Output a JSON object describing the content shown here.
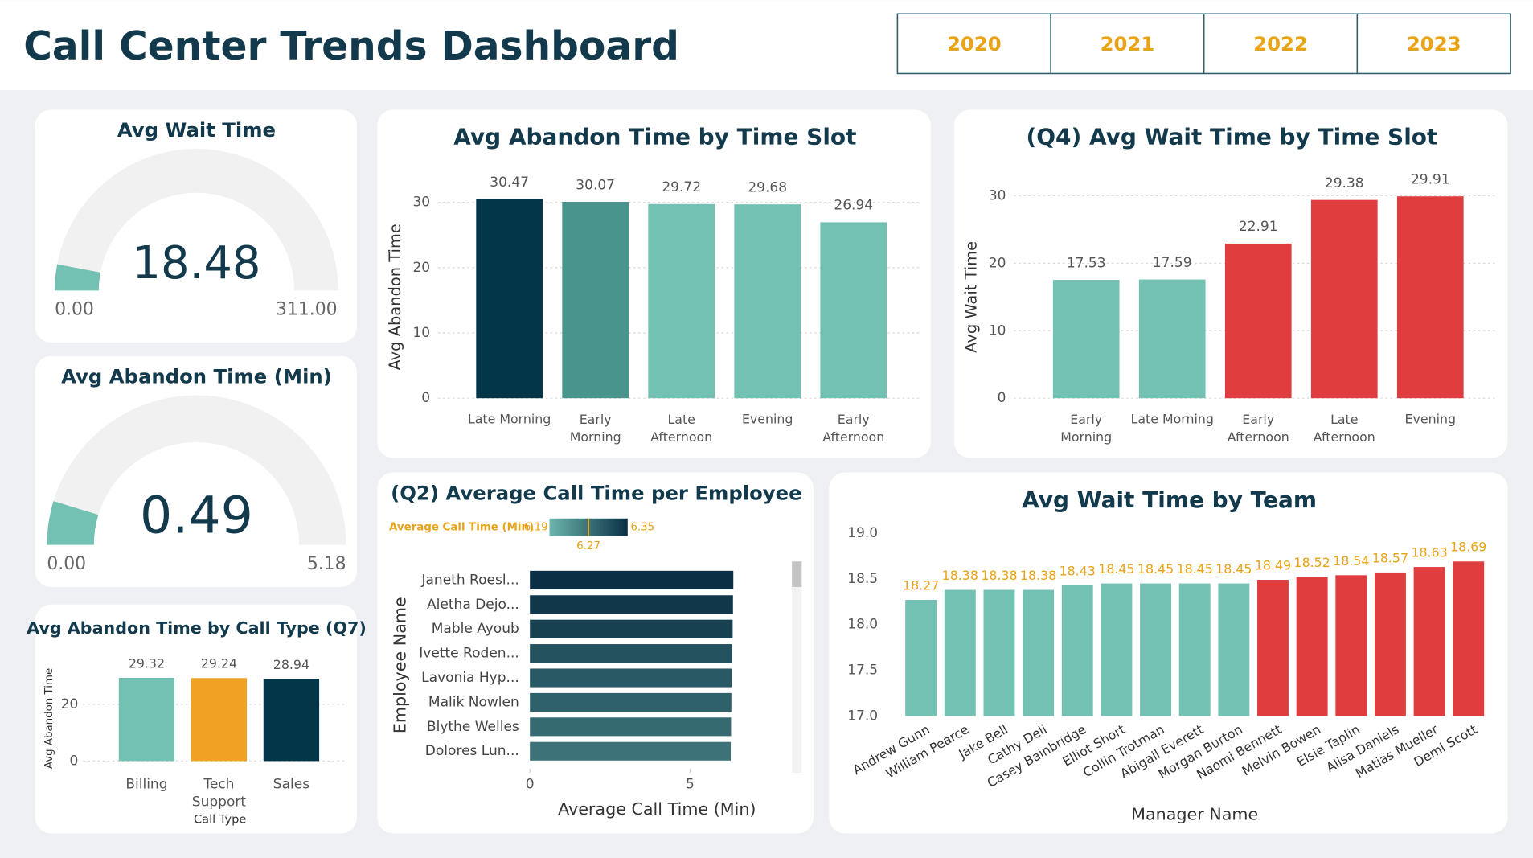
{
  "title": "Call Center Trends Dashboard",
  "filters": [
    "2020",
    "2021",
    "2022",
    "2023"
  ],
  "chart_data": [
    {
      "type": "gauge",
      "title": "Avg Wait Time",
      "value": 18.48,
      "min": {
        "value": 0,
        "label": "0.00"
      },
      "max": {
        "value": 311,
        "label": "311.00"
      },
      "color": "#72c1b3",
      "track_color": "#f1f1f1"
    },
    {
      "type": "gauge",
      "title": "Avg Abandon Time (Min)",
      "value": 0.49,
      "min": {
        "value": 0,
        "label": "0.00"
      },
      "max": 5.18,
      "color": "#72c1b3",
      "track_color": "#f1f1f1"
    },
    {
      "type": "bar",
      "title": "Avg Abandon Time by Call Type (Q7)",
      "x_label": "Call Type",
      "y_label": "Avg Abandon Time",
      "categories": [
        "Billing",
        "Tech Support",
        "Sales"
      ],
      "values": [
        29.32,
        29.24,
        28.94
      ],
      "colors": [
        "#72c1b3",
        "#f0a323",
        "#04364a"
      ],
      "ylim": [
        0,
        30
      ],
      "yticks": [
        0,
        20
      ],
      "grid": true
    },
    {
      "type": "bar",
      "title": "Avg Abandon Time by Time Slot",
      "y_label": "Avg Abandon Time",
      "categories": [
        "Late Morning",
        "Early Morning",
        "Late Afternoon",
        "Evening",
        "Early Afternoon"
      ],
      "values": [
        30.47,
        30.07,
        29.72,
        29.68,
        26.94
      ],
      "colors": [
        "#04364a",
        "#4a948e",
        "#72c1b3",
        "#72c1b3",
        "#72c1b3"
      ],
      "ylim": [
        0,
        31
      ],
      "yticks": [
        0,
        10,
        20,
        30
      ],
      "grid": true
    },
    {
      "type": "bar",
      "title": "(Q4) Avg Wait Time by Time Slot",
      "y_label": "Avg Wait Time",
      "categories": [
        "Early Morning",
        "Late Morning",
        "Early Afternoon",
        "Late Afternoon",
        "Evening"
      ],
      "values": [
        17.53,
        17.59,
        22.91,
        29.38,
        29.91
      ],
      "colors": [
        "#72c1b3",
        "#72c1b3",
        "#e03e3e",
        "#e03e3e",
        "#e03e3e"
      ],
      "ylim": [
        0,
        30
      ],
      "yticks": [
        0,
        10,
        20,
        30
      ],
      "grid": true
    },
    {
      "type": "hbar",
      "title": "(Q2) Average Call Time per Employee",
      "x_label": "Average Call Time (Min)",
      "y_label": "Employee Name",
      "categories": [
        "Janeth Roesl...",
        "Aletha Dejo...",
        "Mable Ayoub",
        "Ivette Roden...",
        "Lavonia Hyp...",
        "Malik Nowlen",
        "Blythe Welles",
        "Dolores Lun..."
      ],
      "values": [
        6.35,
        6.34,
        6.33,
        6.31,
        6.3,
        6.29,
        6.28,
        6.27
      ],
      "color_scale": {
        "title": "Average Call Time (Min)",
        "min": 6.19,
        "mid": 6.27,
        "max": 6.35,
        "colors": [
          "#6cb5ab",
          "#0b2f44"
        ]
      },
      "xlim": [
        0,
        7.6
      ],
      "xticks": [
        0,
        5
      ]
    },
    {
      "type": "bar",
      "title": "Avg Wait Time by Team",
      "x_label": "Manager Name",
      "categories": [
        "Andrew Gunn",
        "William Pearce",
        "Jake Bell",
        "Cathy Deli",
        "Casey Bainbridge",
        "Elliot Short",
        "Collin Trotman",
        "Abigail Everett",
        "Morgan Burton",
        "Naomi Bennett",
        "Melvin Bowen",
        "Elsie Taplin",
        "Alisa Daniels",
        "Matias Mueller",
        "Demi Scott"
      ],
      "values": [
        18.27,
        18.38,
        18.38,
        18.38,
        18.43,
        18.45,
        18.45,
        18.45,
        18.45,
        18.49,
        18.52,
        18.54,
        18.57,
        18.63,
        18.69
      ],
      "colors": [
        "#72c1b3",
        "#72c1b3",
        "#72c1b3",
        "#72c1b3",
        "#72c1b3",
        "#72c1b3",
        "#72c1b3",
        "#72c1b3",
        "#72c1b3",
        "#e03e3e",
        "#e03e3e",
        "#e03e3e",
        "#e03e3e",
        "#e03e3e",
        "#e03e3e"
      ],
      "value_color": "#e8a317",
      "ylim": [
        17,
        19
      ],
      "yticks": [
        {
          "value": 17,
          "label": "17.0"
        },
        {
          "value": 17.5,
          "label": "17.5"
        },
        {
          "value": 18,
          "label": "18.0"
        },
        {
          "value": 18.5,
          "label": "18.5"
        },
        {
          "value": 19,
          "label": "19.0"
        }
      ],
      "grid": false
    }
  ]
}
